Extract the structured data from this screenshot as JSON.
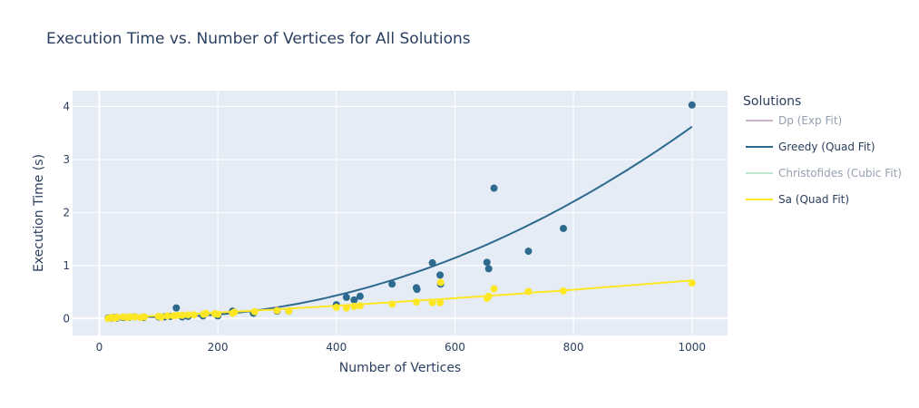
{
  "chart_data": {
    "type": "scatter",
    "title": "Execution Time vs. Number of Vertices for All Solutions",
    "xlabel": "Number of Vertices",
    "ylabel": "Execution Time (s)",
    "xlim": [
      -45,
      1060
    ],
    "ylim": [
      -0.32,
      4.3
    ],
    "xticks": [
      0,
      200,
      400,
      600,
      800,
      1000
    ],
    "yticks": [
      0,
      1,
      2,
      3,
      4
    ],
    "grid": true,
    "legend_title": "Solutions",
    "legend_position": "right",
    "series": [
      {
        "name": "Dp (Exp Fit)",
        "color": "#9c6b9c",
        "hidden": true,
        "points": []
      },
      {
        "name": "Greedy (Quad Fit)",
        "color": "#2d6a8d",
        "hidden": false,
        "fit": {
          "a": 4.4e-06,
          "b": -0.00085,
          "c": 0.07,
          "x_range": [
            15,
            1000
          ]
        },
        "points": [
          [
            15,
            0.01
          ],
          [
            20,
            0.01
          ],
          [
            25,
            0.02
          ],
          [
            30,
            0.01
          ],
          [
            40,
            0.02
          ],
          [
            50,
            0.02
          ],
          [
            60,
            0.03
          ],
          [
            75,
            0.02
          ],
          [
            100,
            0.03
          ],
          [
            110,
            0.03
          ],
          [
            120,
            0.04
          ],
          [
            130,
            0.2
          ],
          [
            140,
            0.03
          ],
          [
            150,
            0.04
          ],
          [
            175,
            0.05
          ],
          [
            200,
            0.05
          ],
          [
            225,
            0.14
          ],
          [
            260,
            0.1
          ],
          [
            300,
            0.14
          ],
          [
            320,
            0.14
          ],
          [
            400,
            0.26
          ],
          [
            417,
            0.4
          ],
          [
            430,
            0.35
          ],
          [
            440,
            0.42
          ],
          [
            494,
            0.65
          ],
          [
            535,
            0.58
          ],
          [
            536,
            0.55
          ],
          [
            562,
            1.05
          ],
          [
            575,
            0.82
          ],
          [
            576,
            0.65
          ],
          [
            654,
            1.06
          ],
          [
            657,
            0.94
          ],
          [
            666,
            2.46
          ],
          [
            724,
            1.27
          ],
          [
            783,
            1.7
          ],
          [
            1000,
            4.03
          ]
        ]
      },
      {
        "name": "Christofides (Cubic Fit)",
        "color": "#7fd1a3",
        "hidden": true,
        "points": []
      },
      {
        "name": "Sa (Quad Fit)",
        "color": "#fde725",
        "hidden": false,
        "fit": {
          "a": 2e-07,
          "b": 0.00052,
          "c": 0.0,
          "x_range": [
            15,
            1000
          ]
        },
        "points": [
          [
            15,
            0.0
          ],
          [
            18,
            0.01
          ],
          [
            22,
            0.02
          ],
          [
            26,
            0.01
          ],
          [
            30,
            0.02
          ],
          [
            40,
            0.03
          ],
          [
            48,
            0.02
          ],
          [
            52,
            0.03
          ],
          [
            60,
            0.03
          ],
          [
            70,
            0.02
          ],
          [
            76,
            0.03
          ],
          [
            100,
            0.04
          ],
          [
            105,
            0.03
          ],
          [
            115,
            0.05
          ],
          [
            125,
            0.05
          ],
          [
            132,
            0.06
          ],
          [
            140,
            0.06
          ],
          [
            150,
            0.07
          ],
          [
            160,
            0.07
          ],
          [
            176,
            0.08
          ],
          [
            180,
            0.1
          ],
          [
            195,
            0.09
          ],
          [
            200,
            0.08
          ],
          [
            225,
            0.1
          ],
          [
            228,
            0.12
          ],
          [
            262,
            0.13
          ],
          [
            300,
            0.15
          ],
          [
            320,
            0.14
          ],
          [
            400,
            0.21
          ],
          [
            417,
            0.2
          ],
          [
            430,
            0.23
          ],
          [
            440,
            0.24
          ],
          [
            494,
            0.27
          ],
          [
            535,
            0.31
          ],
          [
            562,
            0.3
          ],
          [
            575,
            0.3
          ],
          [
            576,
            0.68
          ],
          [
            654,
            0.38
          ],
          [
            657,
            0.42
          ],
          [
            666,
            0.56
          ],
          [
            724,
            0.51
          ],
          [
            783,
            0.52
          ],
          [
            1000,
            0.67
          ]
        ]
      }
    ]
  }
}
